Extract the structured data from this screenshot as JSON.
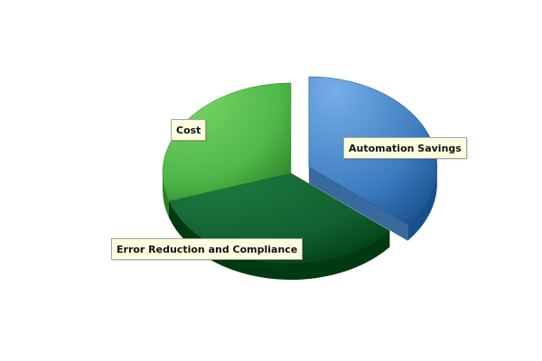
{
  "chart_data": {
    "type": "pie",
    "title": "",
    "slices": [
      {
        "label": "Automation Savings",
        "value": 36,
        "color": "#3d7cc0",
        "color_light": "#76aee6",
        "color_dark": "#18508c",
        "exploded": true
      },
      {
        "label": "Error Reduction and Compliance",
        "value": 34,
        "color": "#11602f",
        "color_light": "#1d7a40",
        "color_dark": "#003a12",
        "exploded": false
      },
      {
        "label": "Cost",
        "value": 30,
        "color": "#4fb84a",
        "color_light": "#7ad866",
        "color_dark": "#2c7e23",
        "exploded": false
      }
    ],
    "legend": "none",
    "view": "3d"
  }
}
